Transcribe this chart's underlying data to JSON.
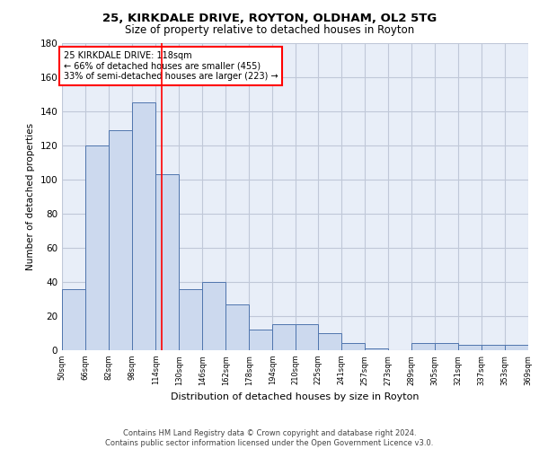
{
  "title_line1": "25, KIRKDALE DRIVE, ROYTON, OLDHAM, OL2 5TG",
  "title_line2": "Size of property relative to detached houses in Royton",
  "xlabel": "Distribution of detached houses by size in Royton",
  "ylabel": "Number of detached properties",
  "bar_edges": [
    50,
    66,
    82,
    98,
    114,
    130,
    146,
    162,
    178,
    194,
    210,
    225,
    241,
    257,
    273,
    289,
    305,
    321,
    337,
    353,
    369
  ],
  "bar_heights": [
    36,
    120,
    129,
    145,
    103,
    36,
    40,
    27,
    12,
    15,
    15,
    10,
    4,
    1,
    0,
    4,
    4,
    3,
    3,
    3
  ],
  "bar_color": "#ccd9ee",
  "bar_edge_color": "#4f75ad",
  "red_line_x": 118,
  "annotation_text": "25 KIRKDALE DRIVE: 118sqm\n← 66% of detached houses are smaller (455)\n33% of semi-detached houses are larger (223) →",
  "annotation_box_color": "white",
  "annotation_box_edge_color": "red",
  "red_line_color": "red",
  "ylim": [
    0,
    180
  ],
  "yticks": [
    0,
    20,
    40,
    60,
    80,
    100,
    120,
    140,
    160,
    180
  ],
  "grid_color": "#c0c8d8",
  "background_color": "#e8eef8",
  "footer_text": "Contains HM Land Registry data © Crown copyright and database right 2024.\nContains public sector information licensed under the Open Government Licence v3.0.",
  "tick_labels": [
    "50sqm",
    "66sqm",
    "82sqm",
    "98sqm",
    "114sqm",
    "130sqm",
    "146sqm",
    "162sqm",
    "178sqm",
    "194sqm",
    "210sqm",
    "225sqm",
    "241sqm",
    "257sqm",
    "273sqm",
    "289sqm",
    "305sqm",
    "321sqm",
    "337sqm",
    "353sqm",
    "369sqm"
  ]
}
